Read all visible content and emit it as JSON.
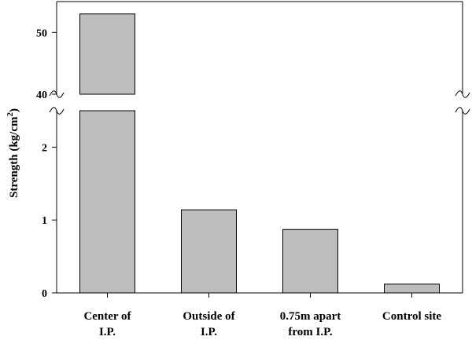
{
  "chart_data": {
    "type": "bar",
    "categories": [
      [
        "Center of",
        "I.P."
      ],
      [
        "Outside of",
        "I.P."
      ],
      [
        "0.75m apart",
        "from I.P."
      ],
      [
        "Control site"
      ]
    ],
    "values": [
      53,
      1.14,
      0.87,
      0.12
    ],
    "ylabel": "Strength (kg/cm",
    "ylabel_superscript": "2",
    "ylabel_suffix": ")",
    "y_axis_break": true,
    "lower_segment": {
      "ylim": [
        0,
        2.5
      ],
      "ticks": [
        0,
        1,
        2
      ]
    },
    "upper_segment": {
      "ylim": [
        40,
        55
      ],
      "ticks": [
        40,
        50
      ]
    },
    "grid": false,
    "bar_color": "#bdbdbd"
  }
}
